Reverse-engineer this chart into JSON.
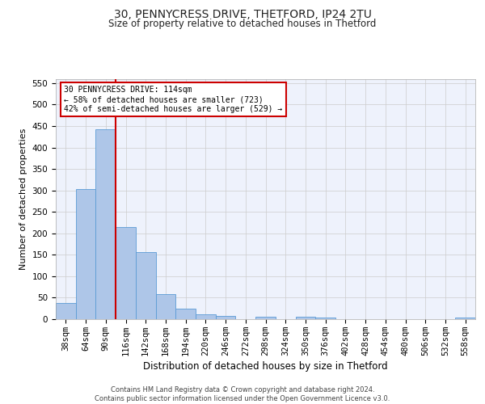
{
  "title1": "30, PENNYCRESS DRIVE, THETFORD, IP24 2TU",
  "title2": "Size of property relative to detached houses in Thetford",
  "xlabel": "Distribution of detached houses by size in Thetford",
  "ylabel": "Number of detached properties",
  "categories": [
    "38sqm",
    "64sqm",
    "90sqm",
    "116sqm",
    "142sqm",
    "168sqm",
    "194sqm",
    "220sqm",
    "246sqm",
    "272sqm",
    "298sqm",
    "324sqm",
    "350sqm",
    "376sqm",
    "402sqm",
    "428sqm",
    "454sqm",
    "480sqm",
    "506sqm",
    "532sqm",
    "558sqm"
  ],
  "values": [
    37,
    303,
    443,
    215,
    157,
    59,
    24,
    11,
    8,
    0,
    5,
    0,
    6,
    3,
    0,
    0,
    0,
    0,
    0,
    0,
    3
  ],
  "bar_color": "#aec6e8",
  "bar_edge_color": "#5b9bd5",
  "vline_color": "#cc0000",
  "annotation_text": "30 PENNYCRESS DRIVE: 114sqm\n← 58% of detached houses are smaller (723)\n42% of semi-detached houses are larger (529) →",
  "annotation_box_color": "#ffffff",
  "annotation_box_edge": "#cc0000",
  "grid_color": "#cccccc",
  "background_color": "#ffffff",
  "plot_bg_color": "#eef2fc",
  "footer_text": "Contains HM Land Registry data © Crown copyright and database right 2024.\nContains public sector information licensed under the Open Government Licence v3.0.",
  "ylim": [
    0,
    560
  ],
  "yticks": [
    0,
    50,
    100,
    150,
    200,
    250,
    300,
    350,
    400,
    450,
    500,
    550
  ],
  "title1_fontsize": 10,
  "title2_fontsize": 8.5,
  "ylabel_fontsize": 8,
  "xlabel_fontsize": 8.5,
  "tick_fontsize": 7.5,
  "ann_fontsize": 7,
  "footer_fontsize": 6
}
